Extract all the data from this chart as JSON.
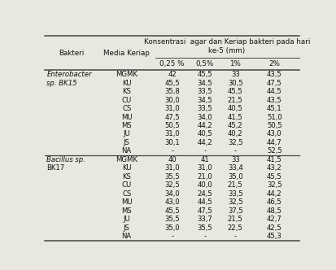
{
  "col_headers_main": [
    "Bakteri",
    "Media Keriap",
    "0,25 %",
    "0,5%",
    "1%",
    "2%"
  ],
  "merged_header": "Konsentrasi  agar dan Keriap bakteri pada hari\nke-5 (mm)",
  "rows": [
    [
      "Enterobacter",
      "MGMK",
      "42",
      "45,5",
      "33",
      "43,5"
    ],
    [
      "sp. BK15",
      "KU",
      "45,5",
      "34,5",
      "30,5",
      "47,5"
    ],
    [
      "",
      "KS",
      "35,8",
      "33,5",
      "45,5",
      "44,5"
    ],
    [
      "",
      "CU",
      "30,0",
      "34,5",
      "21,5",
      "43,5"
    ],
    [
      "",
      "CS",
      "31,0",
      "33,5",
      "40,5",
      "45,1"
    ],
    [
      "",
      "MU",
      "47,5",
      "34,0",
      "41,5",
      "51,0"
    ],
    [
      "",
      "MS",
      "50,5",
      "44,2",
      "45,2",
      "50,5"
    ],
    [
      "",
      "JU",
      "31,0",
      "40,5",
      "40,2",
      "43,0"
    ],
    [
      "",
      "JS",
      "30,1",
      "44,2",
      "32,5",
      "44,7"
    ],
    [
      "",
      "NA",
      "-",
      "-",
      "-",
      "52,5"
    ],
    [
      "Bacillus sp.",
      "MGMK",
      "40",
      "41",
      "33",
      "41,5"
    ],
    [
      "BK17",
      "KU",
      "31,0",
      "31,0",
      "33,4",
      "43,2"
    ],
    [
      "",
      "KS",
      "35,5",
      "21,0",
      "35,0",
      "45,5"
    ],
    [
      "",
      "CU",
      "32,5",
      "40,0",
      "21,5",
      "32,5"
    ],
    [
      "",
      "CS",
      "34,0",
      "24,5",
      "33,5",
      "44,2"
    ],
    [
      "",
      "MU",
      "43,0",
      "44,5",
      "32,5",
      "46,5"
    ],
    [
      "",
      "MS",
      "45,5",
      "47,5",
      "37,5",
      "48,5"
    ],
    [
      "",
      "JU",
      "35,5",
      "33,7",
      "21,5",
      "42,7"
    ],
    [
      "",
      "JS",
      "35,0",
      "35,5",
      "22,5",
      "42,5"
    ],
    [
      "",
      "NA",
      "-",
      "-",
      "-",
      "45,3"
    ]
  ],
  "italic_col0": [
    0,
    1,
    10
  ],
  "bg_color": "#e8e8e0",
  "text_color": "#111111",
  "line_color": "#444444",
  "figsize": [
    4.13,
    3.32
  ],
  "dpi": 100
}
